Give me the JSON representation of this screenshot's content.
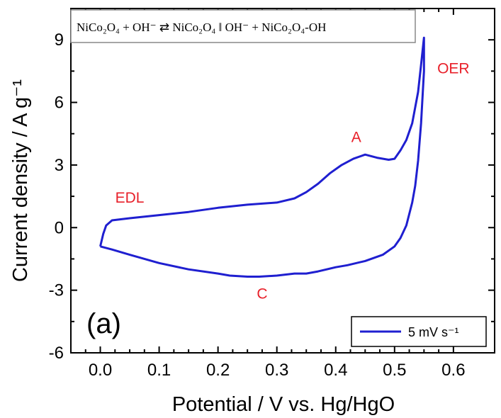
{
  "chart_data": {
    "type": "line",
    "xlabel": "Potential / V vs. Hg/HgO",
    "ylabel": "Current density / A g⁻¹",
    "xlim": [
      -0.05,
      0.67
    ],
    "ylim": [
      -6,
      10.5
    ],
    "x_ticks": [
      "0.0",
      "0.1",
      "0.2",
      "0.3",
      "0.4",
      "0.5",
      "0.6"
    ],
    "y_ticks": [
      "-6",
      "-3",
      "0",
      "3",
      "6",
      "9"
    ],
    "series_color": "#1f1fd0",
    "legend": {
      "label": "5 mV s⁻¹",
      "position": "bottom-right"
    },
    "panel_label": "(a)",
    "equation": "NiCo₂O₄ + OH⁻ ⇄ NiCo₂O₄ ‖ OH⁻ + NiCo₂O₄-OH",
    "annotations": [
      {
        "text": "EDL",
        "x": 0.05,
        "y": 1.2
      },
      {
        "text": "A",
        "x": 0.435,
        "y": 4.1
      },
      {
        "text": "OER",
        "x": 0.6,
        "y": 7.4
      },
      {
        "text": "C",
        "x": 0.275,
        "y": -3.4
      }
    ],
    "series": [
      {
        "name": "5 mV s⁻¹",
        "x": [
          0.0,
          0.005,
          0.01,
          0.02,
          0.05,
          0.1,
          0.15,
          0.2,
          0.25,
          0.3,
          0.33,
          0.35,
          0.37,
          0.39,
          0.41,
          0.43,
          0.45,
          0.47,
          0.49,
          0.5,
          0.51,
          0.52,
          0.53,
          0.54,
          0.545,
          0.55,
          0.55,
          0.545,
          0.54,
          0.535,
          0.53,
          0.52,
          0.51,
          0.5,
          0.48,
          0.45,
          0.42,
          0.4,
          0.37,
          0.35,
          0.33,
          0.3,
          0.27,
          0.25,
          0.22,
          0.2,
          0.15,
          0.1,
          0.05,
          0.02,
          0.0
        ],
        "y": [
          -0.9,
          -0.3,
          0.1,
          0.35,
          0.45,
          0.6,
          0.75,
          0.95,
          1.1,
          1.2,
          1.4,
          1.7,
          2.1,
          2.6,
          3.0,
          3.3,
          3.5,
          3.35,
          3.25,
          3.3,
          3.7,
          4.2,
          5.0,
          6.5,
          7.8,
          9.1,
          7.5,
          5.0,
          3.2,
          2.0,
          1.2,
          0.1,
          -0.5,
          -0.9,
          -1.3,
          -1.6,
          -1.8,
          -1.9,
          -2.1,
          -2.2,
          -2.2,
          -2.3,
          -2.35,
          -2.35,
          -2.3,
          -2.2,
          -2.0,
          -1.7,
          -1.3,
          -1.05,
          -0.9
        ]
      }
    ]
  }
}
